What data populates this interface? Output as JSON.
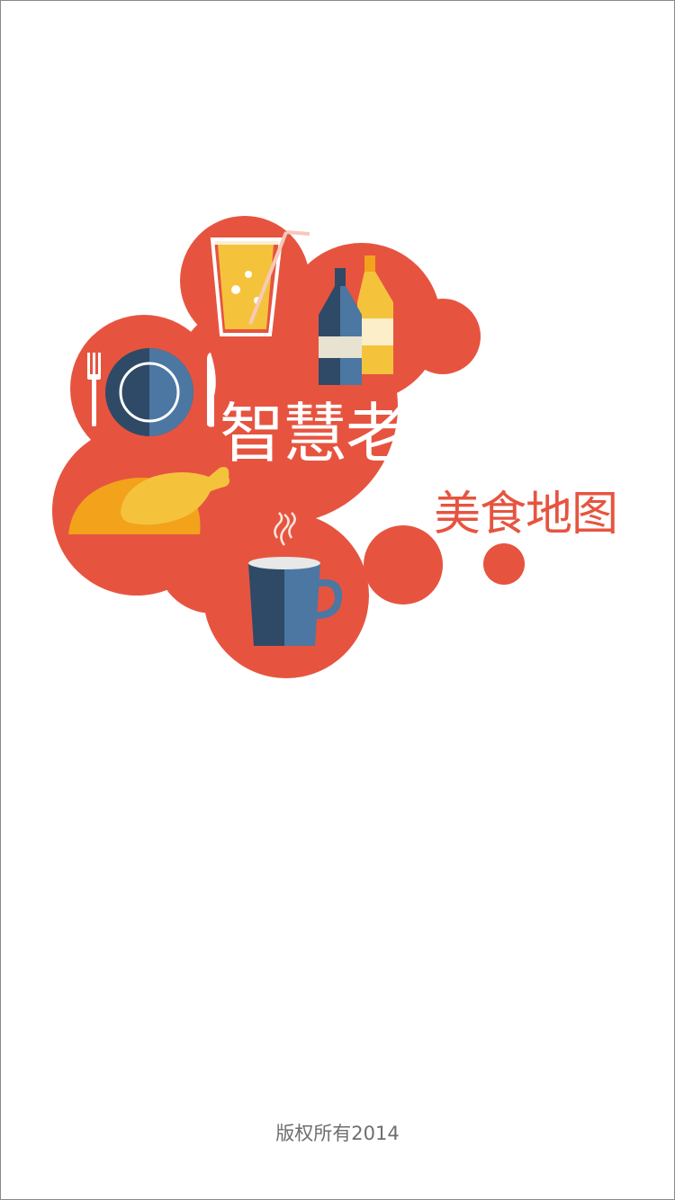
{
  "splash": {
    "app_title": "智慧老河口",
    "app_subtitle": "美食地图",
    "copyright": "版权所有2014"
  },
  "colors": {
    "brand_red": "#e65440",
    "navy": "#2f4a66",
    "steel_blue": "#4c77a2",
    "yellow": "#f5c33b",
    "orange": "#f2a21b",
    "background": "#ffffff"
  },
  "icons": [
    "juice-glass-icon",
    "bottles-icon",
    "fork-icon",
    "plate-icon",
    "knife-icon",
    "roast-chicken-icon",
    "coffee-mug-icon"
  ]
}
